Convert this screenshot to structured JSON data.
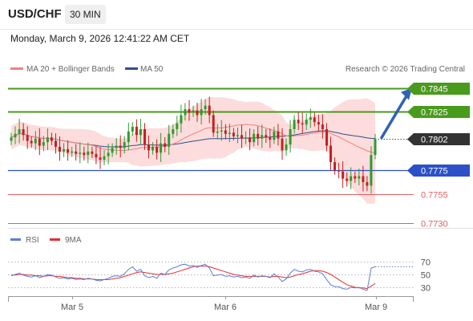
{
  "header": {
    "symbol": "USD/CHF",
    "timeframe": "30 MIN",
    "datetime": "Monday, March 9, 2026 12:41:22 AM CET"
  },
  "legend": {
    "ma20_bb": "MA 20 + Bollinger Bands",
    "ma50": "MA 50",
    "credit": "Research © 2026 Trading Central",
    "rsi": "RSI",
    "rsi_ma": "9MA"
  },
  "colors": {
    "resistance": "#4a9a1c",
    "support": "#2b50c8",
    "support_light": "#e06060",
    "current": "#333333",
    "arrow": "#2f62b5",
    "band": "#fbd6d6",
    "ma20": "#f08080",
    "ma50": "#2f4f8a",
    "rsi": "#5b7fd6",
    "rsi_ma": "#e03030",
    "up": "#2e9b2e",
    "down": "#c61f1f"
  },
  "chart_data": [
    {
      "type": "candlestick",
      "title": "USD/CHF",
      "x_labels": [
        "Mar 5",
        "Mar 6",
        "Mar 9"
      ],
      "ylim": [
        0.7722,
        0.7855
      ],
      "grid": false,
      "legend_position": "top-left",
      "overlays": [
        "MA 20 + Bollinger Bands",
        "MA 50"
      ],
      "current_price": "0.7802",
      "levels": [
        {
          "value": "0.7845",
          "kind": "resistance",
          "style": "box"
        },
        {
          "value": "0.7825",
          "kind": "resistance",
          "style": "box"
        },
        {
          "value": "0.7775",
          "kind": "support",
          "style": "box"
        },
        {
          "value": "0.7755",
          "kind": "support",
          "style": "text"
        },
        {
          "value": "0.7730",
          "kind": "support",
          "style": "text"
        }
      ],
      "target": "0.7845",
      "closes": [
        0.7803,
        0.7806,
        0.781,
        0.7805,
        0.78,
        0.7798,
        0.7802,
        0.7796,
        0.7799,
        0.7803,
        0.78,
        0.7795,
        0.7791,
        0.7793,
        0.779,
        0.7791,
        0.7789,
        0.779,
        0.7788,
        0.7791,
        0.7789,
        0.7786,
        0.7784,
        0.7787,
        0.779,
        0.7794,
        0.7796,
        0.7794,
        0.7799,
        0.7808,
        0.7812,
        0.7805,
        0.781,
        0.7797,
        0.7792,
        0.7795,
        0.779,
        0.7798,
        0.7795,
        0.7806,
        0.781,
        0.7815,
        0.7822,
        0.7827,
        0.7824,
        0.7826,
        0.7822,
        0.7827,
        0.783,
        0.7822,
        0.7807,
        0.7808,
        0.7809,
        0.7806,
        0.7807,
        0.7804,
        0.7805,
        0.7802,
        0.7803,
        0.7799,
        0.7806,
        0.7802,
        0.7805,
        0.7803,
        0.7801,
        0.7808,
        0.7802,
        0.7792,
        0.7797,
        0.781,
        0.7818,
        0.7815,
        0.7814,
        0.7818,
        0.782,
        0.7816,
        0.7814,
        0.781,
        0.7796,
        0.7782,
        0.7775,
        0.7774,
        0.7768,
        0.7766,
        0.777,
        0.7768,
        0.777,
        0.7765,
        0.7762,
        0.7788,
        0.7802
      ]
    },
    {
      "type": "line",
      "title": "RSI",
      "series": [
        {
          "name": "RSI"
        },
        {
          "name": "9MA"
        }
      ],
      "y_ticks": [
        70,
        50,
        30
      ],
      "ylim": [
        20,
        80
      ],
      "rsi": [
        48,
        50,
        52,
        49,
        47,
        46,
        48,
        45,
        47,
        50,
        49,
        46,
        44,
        45,
        43,
        44,
        42,
        43,
        42,
        44,
        43,
        41,
        40,
        42,
        44,
        47,
        48,
        47,
        51,
        58,
        62,
        55,
        58,
        48,
        45,
        47,
        44,
        52,
        50,
        57,
        60,
        62,
        65,
        66,
        63,
        64,
        61,
        64,
        66,
        60,
        48,
        49,
        50,
        47,
        48,
        46,
        47,
        45,
        46,
        44,
        49,
        46,
        48,
        47,
        45,
        51,
        46,
        39,
        43,
        52,
        58,
        55,
        54,
        57,
        58,
        55,
        54,
        51,
        42,
        34,
        31,
        31,
        28,
        27,
        30,
        29,
        30,
        27,
        25,
        60,
        62
      ],
      "rsi_ma": [
        49,
        49,
        50,
        50,
        49,
        49,
        48,
        48,
        47,
        48,
        48,
        47,
        47,
        46,
        45,
        45,
        44,
        44,
        43,
        43,
        43,
        42,
        42,
        42,
        42,
        43,
        44,
        45,
        47,
        49,
        51,
        53,
        54,
        53,
        52,
        51,
        50,
        50,
        50,
        51,
        52,
        54,
        56,
        58,
        60,
        62,
        63,
        63,
        63,
        62,
        60,
        58,
        56,
        54,
        52,
        50,
        49,
        48,
        47,
        47,
        47,
        47,
        47,
        47,
        46,
        47,
        47,
        46,
        45,
        46,
        48,
        50,
        51,
        53,
        55,
        56,
        56,
        55,
        53,
        50,
        46,
        42,
        38,
        34,
        32,
        30,
        29,
        29,
        28,
        32,
        36
      ]
    }
  ]
}
